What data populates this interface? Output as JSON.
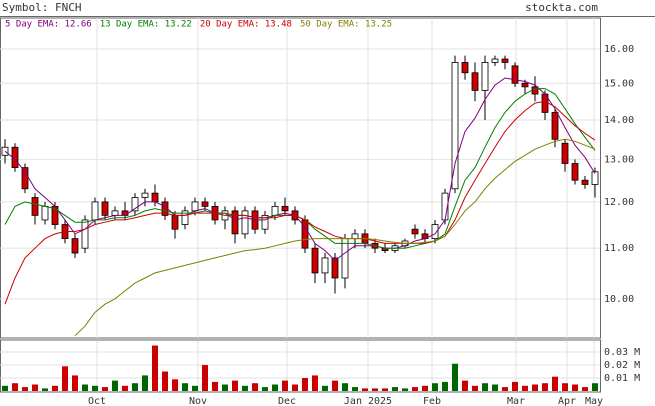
{
  "chart_data": {
    "type": "candlestick",
    "symbol_label": "Symbol: FNCH",
    "source": "stockta.com",
    "log_scale": true,
    "grid": true,
    "up_color": "#ffffff",
    "down_color": "#cc0000",
    "volume_up_color": "#006600",
    "volume_down_color": "#cc0000",
    "x": [
      0,
      1,
      2,
      3,
      4,
      5,
      6,
      7,
      8,
      9,
      10,
      11,
      12,
      13,
      14,
      15,
      16,
      17,
      18,
      19,
      20,
      21,
      22,
      23,
      24,
      25,
      26,
      27,
      28,
      29,
      30,
      31,
      32,
      33,
      34,
      35,
      36,
      37,
      38,
      39,
      40,
      41,
      42,
      43,
      44,
      45,
      46,
      47,
      48,
      49,
      50,
      51,
      52,
      53,
      54,
      55,
      56,
      57,
      58,
      59
    ],
    "xlim": [
      -0.5,
      59.5
    ],
    "xticks": [
      {
        "value": 9.2,
        "label": "Oct"
      },
      {
        "value": 19.3,
        "label": "Nov"
      },
      {
        "value": 28.2,
        "label": "Dec"
      },
      {
        "value": 36.3,
        "label": "Jan 2025"
      },
      {
        "value": 42.7,
        "label": "Feb"
      },
      {
        "value": 51.1,
        "label": "Mar"
      },
      {
        "value": 56.2,
        "label": "Apr"
      },
      {
        "value": 58.9,
        "label": "May"
      }
    ],
    "open": [
      13.1,
      13.3,
      12.8,
      12.1,
      11.6,
      11.9,
      11.5,
      11.2,
      11.0,
      11.6,
      12.0,
      11.7,
      11.8,
      11.8,
      12.1,
      12.2,
      12.0,
      11.7,
      11.5,
      11.8,
      12.0,
      11.9,
      11.6,
      11.8,
      11.3,
      11.8,
      11.4,
      11.7,
      11.9,
      11.8,
      11.6,
      11.0,
      10.5,
      10.8,
      10.4,
      11.2,
      11.3,
      11.1,
      11.0,
      10.95,
      11.05,
      11.4,
      11.3,
      11.2,
      11.6,
      12.3,
      15.6,
      15.3,
      14.8,
      15.6,
      15.7,
      15.5,
      15.0,
      14.9,
      14.7,
      14.2,
      13.4,
      12.9,
      12.5,
      12.4
    ],
    "high": [
      13.5,
      13.4,
      12.9,
      12.2,
      12.0,
      12.0,
      11.6,
      11.3,
      11.7,
      12.1,
      12.1,
      11.9,
      12.0,
      12.2,
      12.3,
      12.4,
      12.1,
      11.8,
      11.9,
      12.1,
      12.1,
      12.0,
      11.9,
      11.9,
      11.9,
      11.9,
      11.8,
      12.0,
      12.1,
      11.9,
      11.7,
      11.1,
      10.9,
      10.9,
      11.3,
      11.4,
      11.4,
      11.2,
      11.1,
      11.1,
      11.2,
      11.5,
      11.4,
      11.6,
      12.3,
      15.8,
      15.8,
      15.6,
      15.8,
      15.8,
      15.8,
      15.6,
      15.1,
      15.2,
      14.8,
      14.3,
      13.5,
      13.0,
      12.6,
      12.8
    ],
    "low": [
      12.9,
      12.7,
      12.2,
      11.5,
      11.5,
      11.4,
      11.1,
      10.8,
      10.9,
      11.5,
      11.6,
      11.6,
      11.6,
      11.7,
      11.9,
      11.9,
      11.6,
      11.2,
      11.4,
      11.7,
      11.8,
      11.5,
      11.4,
      11.1,
      11.2,
      11.3,
      11.3,
      11.6,
      11.7,
      11.5,
      10.9,
      10.3,
      10.3,
      10.1,
      10.2,
      11.0,
      11.0,
      10.9,
      10.9,
      10.9,
      11.0,
      11.2,
      11.1,
      11.1,
      11.5,
      12.2,
      15.1,
      14.5,
      14.0,
      15.5,
      15.4,
      14.9,
      14.7,
      14.5,
      14.0,
      13.3,
      12.7,
      12.4,
      12.3,
      12.1
    ],
    "close": [
      13.3,
      12.8,
      12.3,
      11.7,
      11.9,
      11.5,
      11.2,
      10.9,
      11.6,
      12.0,
      11.7,
      11.8,
      11.7,
      12.1,
      12.2,
      12.0,
      11.7,
      11.4,
      11.8,
      12.0,
      11.9,
      11.6,
      11.8,
      11.3,
      11.8,
      11.4,
      11.7,
      11.9,
      11.8,
      11.6,
      11.0,
      10.5,
      10.8,
      10.4,
      11.2,
      11.3,
      11.1,
      11.0,
      10.95,
      11.05,
      11.15,
      11.3,
      11.2,
      11.5,
      12.2,
      15.6,
      15.3,
      14.8,
      15.6,
      15.7,
      15.6,
      15.0,
      14.9,
      14.7,
      14.2,
      13.5,
      12.9,
      12.5,
      12.4,
      12.7
    ],
    "volume": [
      0.004,
      0.006,
      0.003,
      0.005,
      0.002,
      0.004,
      0.019,
      0.012,
      0.005,
      0.004,
      0.003,
      0.008,
      0.004,
      0.006,
      0.012,
      0.035,
      0.015,
      0.009,
      0.006,
      0.004,
      0.02,
      0.007,
      0.005,
      0.008,
      0.004,
      0.006,
      0.003,
      0.005,
      0.008,
      0.005,
      0.01,
      0.012,
      0.004,
      0.008,
      0.006,
      0.003,
      0.002,
      0.002,
      0.002,
      0.003,
      0.002,
      0.003,
      0.004,
      0.006,
      0.007,
      0.021,
      0.008,
      0.004,
      0.006,
      0.005,
      0.003,
      0.007,
      0.004,
      0.005,
      0.006,
      0.011,
      0.006,
      0.005,
      0.003,
      0.006
    ],
    "ylim": [
      9.29,
      16.96
    ],
    "yticks": [
      {
        "value": 10,
        "label": "10.00"
      },
      {
        "value": 11,
        "label": "11.00"
      },
      {
        "value": 12,
        "label": "12.00"
      },
      {
        "value": 13,
        "label": "13.00"
      },
      {
        "value": 14,
        "label": "14.00"
      },
      {
        "value": 15,
        "label": "15.00"
      },
      {
        "value": 16,
        "label": "16.00"
      }
    ],
    "volume_ylim": [
      0,
      0.0385
    ],
    "volume_yticks": [
      {
        "value": 0.01,
        "label": "0.01 M"
      },
      {
        "value": 0.02,
        "label": "0.02 M"
      },
      {
        "value": 0.03,
        "label": "0.03 M"
      }
    ],
    "series": [
      {
        "name": "5 Day EMA: 12.66",
        "color": "#800080",
        "values": [
          13.2,
          13.0,
          12.7,
          12.3,
          12.1,
          11.9,
          11.6,
          11.3,
          11.4,
          11.6,
          11.65,
          11.7,
          11.7,
          11.85,
          12.0,
          12.0,
          11.9,
          11.7,
          11.7,
          11.8,
          11.85,
          11.75,
          11.75,
          11.6,
          11.65,
          11.6,
          11.6,
          11.7,
          11.75,
          11.7,
          11.45,
          11.1,
          10.95,
          10.75,
          10.9,
          11.05,
          11.05,
          11.05,
          11.0,
          11.0,
          11.05,
          11.15,
          11.2,
          11.3,
          11.6,
          12.9,
          13.7,
          14.05,
          14.55,
          14.95,
          15.15,
          15.1,
          15.05,
          14.95,
          14.7,
          14.3,
          13.8,
          13.35,
          13.05,
          12.66
        ]
      },
      {
        "name": "13 Day EMA: 13.22",
        "color": "#008000",
        "values": [
          11.5,
          11.9,
          12.0,
          11.95,
          11.9,
          11.85,
          11.7,
          11.55,
          11.55,
          11.6,
          11.6,
          11.65,
          11.65,
          11.7,
          11.8,
          11.85,
          11.8,
          11.75,
          11.75,
          11.75,
          11.8,
          11.75,
          11.75,
          11.7,
          11.7,
          11.65,
          11.65,
          11.7,
          11.7,
          11.7,
          11.6,
          11.4,
          11.25,
          11.1,
          11.1,
          11.1,
          11.1,
          11.05,
          11.0,
          11.0,
          11.0,
          11.05,
          11.1,
          11.15,
          11.3,
          11.9,
          12.5,
          12.8,
          13.3,
          13.8,
          14.2,
          14.5,
          14.7,
          14.85,
          14.85,
          14.7,
          14.3,
          13.9,
          13.55,
          13.22
        ]
      },
      {
        "name": "20 Day EMA: 13.48",
        "color": "#cc0000",
        "values": [
          9.9,
          10.4,
          10.8,
          11.0,
          11.2,
          11.3,
          11.35,
          11.35,
          11.4,
          11.5,
          11.55,
          11.6,
          11.6,
          11.65,
          11.7,
          11.75,
          11.75,
          11.7,
          11.7,
          11.75,
          11.75,
          11.75,
          11.7,
          11.7,
          11.7,
          11.65,
          11.65,
          11.65,
          11.7,
          11.7,
          11.6,
          11.45,
          11.35,
          11.25,
          11.2,
          11.2,
          11.2,
          11.15,
          11.1,
          11.1,
          11.1,
          11.1,
          11.1,
          11.15,
          11.25,
          11.6,
          12.1,
          12.5,
          12.9,
          13.3,
          13.7,
          14.0,
          14.25,
          14.45,
          14.5,
          14.35,
          14.1,
          13.85,
          13.65,
          13.48
        ]
      },
      {
        "name": "50 Day EMA: 13.25",
        "color": "#808000",
        "values": [
          null,
          null,
          null,
          null,
          null,
          null,
          null,
          9.33,
          9.5,
          9.75,
          9.9,
          10.0,
          10.15,
          10.3,
          10.4,
          10.5,
          10.55,
          10.6,
          10.65,
          10.7,
          10.75,
          10.8,
          10.85,
          10.9,
          10.95,
          10.97,
          11.0,
          11.05,
          11.1,
          11.15,
          11.18,
          11.2,
          11.2,
          11.2,
          11.2,
          11.2,
          11.2,
          11.18,
          11.15,
          11.12,
          11.1,
          11.1,
          11.12,
          11.15,
          11.25,
          11.5,
          11.8,
          12.0,
          12.3,
          12.55,
          12.75,
          12.95,
          13.1,
          13.25,
          13.35,
          13.45,
          13.5,
          13.45,
          13.35,
          13.25
        ]
      }
    ]
  }
}
